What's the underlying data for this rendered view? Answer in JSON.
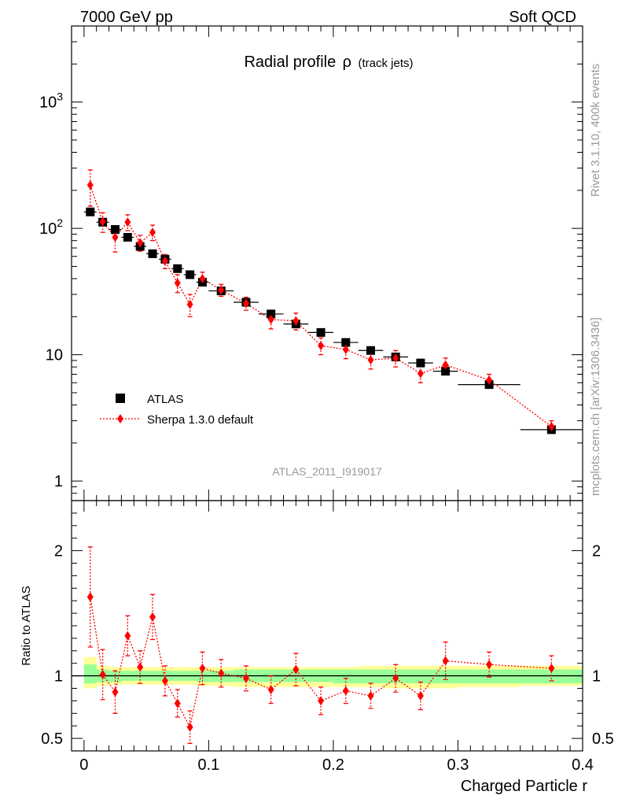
{
  "header": {
    "left": "7000 GeV pp",
    "right": "Soft QCD"
  },
  "side_labels": {
    "rivet": "Rivet 3.1.10,  400k events",
    "mcplots": "mcplots.cern.ch [arXiv:1306.3436]"
  },
  "colors": {
    "data": "#000000",
    "mc": "#ff0000",
    "band_inner": "#99ff99",
    "band_outer": "#ffff99",
    "watermark": "#999999"
  },
  "chart_data": [
    {
      "type": "scatter",
      "panel": "main",
      "title": "Radial profile",
      "title_symbol": "ρ",
      "title_suffix": "(track jets)",
      "watermark": "ATLAS_2011_I919017",
      "yscale": "log",
      "ylim": [
        0.7,
        4000
      ],
      "xlim": [
        -0.01,
        0.4
      ],
      "ytick_labels": [
        {
          "value": 1,
          "base": "1",
          "exp": ""
        },
        {
          "value": 10,
          "base": "10",
          "exp": ""
        },
        {
          "value": 100,
          "base": "10",
          "exp": "2"
        },
        {
          "value": 1000,
          "base": "10",
          "exp": "3"
        }
      ],
      "legend": [
        {
          "label": "ATLAS",
          "marker": "square"
        },
        {
          "label": "Sherpa 1.3.0 default",
          "marker": "diamond"
        }
      ],
      "legend_position": "lower-left",
      "series": [
        {
          "name": "ATLAS",
          "x": [
            0.005,
            0.015,
            0.025,
            0.035,
            0.045,
            0.055,
            0.065,
            0.075,
            0.085,
            0.095,
            0.11,
            0.13,
            0.15,
            0.17,
            0.19,
            0.21,
            0.23,
            0.25,
            0.27,
            0.29,
            0.325,
            0.375
          ],
          "xerr": [
            0.005,
            0.005,
            0.005,
            0.005,
            0.005,
            0.005,
            0.005,
            0.005,
            0.005,
            0.005,
            0.01,
            0.01,
            0.01,
            0.01,
            0.01,
            0.01,
            0.01,
            0.01,
            0.01,
            0.01,
            0.025,
            0.025
          ],
          "y": [
            135,
            112,
            98,
            85,
            72,
            63,
            57,
            48,
            43,
            37.5,
            32,
            26,
            21,
            17.5,
            15,
            12.5,
            10.8,
            9.6,
            8.6,
            7.4,
            5.8,
            2.55
          ]
        },
        {
          "name": "Sherpa 1.3.0 default",
          "x": [
            0.005,
            0.015,
            0.025,
            0.035,
            0.045,
            0.055,
            0.065,
            0.075,
            0.085,
            0.095,
            0.11,
            0.13,
            0.15,
            0.17,
            0.19,
            0.21,
            0.23,
            0.25,
            0.27,
            0.29,
            0.325,
            0.375
          ],
          "y": [
            220,
            113,
            85,
            112,
            77,
            93,
            55,
            37,
            25,
            40,
            32.5,
            25.5,
            19,
            18.5,
            11.8,
            11,
            9.1,
            9.4,
            7.1,
            8.3,
            6.3,
            2.7
          ],
          "yerr_lo": [
            70,
            20,
            20,
            16,
            11,
            13,
            7,
            6,
            5,
            5,
            3.5,
            3,
            3,
            2.8,
            1.8,
            1.7,
            1.4,
            1.4,
            1.1,
            1.1,
            0.7,
            0.3
          ],
          "yerr_hi": [
            70,
            20,
            20,
            16,
            11,
            13,
            7,
            6,
            5,
            5,
            3.5,
            3,
            3,
            2.8,
            1.8,
            1.7,
            1.4,
            1.4,
            1.1,
            1.1,
            0.7,
            0.3
          ]
        }
      ]
    },
    {
      "type": "scatter",
      "panel": "ratio",
      "ylabel": "Ratio to ATLAS",
      "xlabel": "Charged Particle r",
      "ylim": [
        0.4,
        2.4
      ],
      "xlim": [
        -0.01,
        0.4
      ],
      "yticks": [
        0.5,
        1,
        2
      ],
      "ytick_labels": [
        "0.5",
        "1",
        "2"
      ],
      "xticks": [
        0,
        0.1,
        0.2,
        0.3,
        0.4
      ],
      "xtick_labels": [
        "0",
        "0.1",
        "0.2",
        "0.3",
        "0.4"
      ],
      "band": {
        "x_edges": [
          0,
          0.01,
          0.02,
          0.03,
          0.04,
          0.05,
          0.06,
          0.07,
          0.08,
          0.09,
          0.1,
          0.12,
          0.14,
          0.16,
          0.18,
          0.2,
          0.22,
          0.24,
          0.26,
          0.28,
          0.3,
          0.35,
          0.4
        ],
        "inner_lo": [
          0.94,
          0.95,
          0.95,
          0.96,
          0.96,
          0.96,
          0.96,
          0.96,
          0.96,
          0.95,
          0.95,
          0.95,
          0.95,
          0.95,
          0.95,
          0.94,
          0.94,
          0.94,
          0.94,
          0.94,
          0.94,
          0.94
        ],
        "inner_hi": [
          1.09,
          1.05,
          1.04,
          1.04,
          1.04,
          1.04,
          1.04,
          1.04,
          1.04,
          1.04,
          1.04,
          1.05,
          1.05,
          1.05,
          1.05,
          1.05,
          1.05,
          1.05,
          1.05,
          1.05,
          1.05,
          1.05
        ],
        "outer_lo": [
          0.9,
          0.92,
          0.93,
          0.93,
          0.93,
          0.93,
          0.93,
          0.93,
          0.93,
          0.92,
          0.92,
          0.91,
          0.91,
          0.91,
          0.91,
          0.91,
          0.91,
          0.9,
          0.9,
          0.9,
          0.91,
          0.92
        ],
        "outer_hi": [
          1.15,
          1.08,
          1.07,
          1.07,
          1.07,
          1.07,
          1.07,
          1.07,
          1.07,
          1.07,
          1.07,
          1.07,
          1.07,
          1.07,
          1.07,
          1.07,
          1.08,
          1.08,
          1.08,
          1.08,
          1.08,
          1.08
        ]
      },
      "series": [
        {
          "name": "Sherpa 1.3.0 default",
          "x": [
            0.005,
            0.015,
            0.025,
            0.035,
            0.045,
            0.055,
            0.065,
            0.075,
            0.085,
            0.095,
            0.11,
            0.13,
            0.15,
            0.17,
            0.19,
            0.21,
            0.23,
            0.25,
            0.27,
            0.29,
            0.325,
            0.375
          ],
          "y": [
            1.63,
            1.01,
            0.87,
            1.32,
            1.07,
            1.47,
            0.96,
            0.78,
            0.59,
            1.06,
            1.02,
            0.98,
            0.89,
            1.05,
            0.8,
            0.88,
            0.84,
            0.98,
            0.84,
            1.12,
            1.09,
            1.06
          ],
          "yerr": [
            0.4,
            0.2,
            0.17,
            0.16,
            0.13,
            0.18,
            0.12,
            0.11,
            0.13,
            0.13,
            0.11,
            0.1,
            0.11,
            0.13,
            0.11,
            0.1,
            0.1,
            0.11,
            0.11,
            0.15,
            0.1,
            0.1
          ]
        }
      ]
    }
  ]
}
